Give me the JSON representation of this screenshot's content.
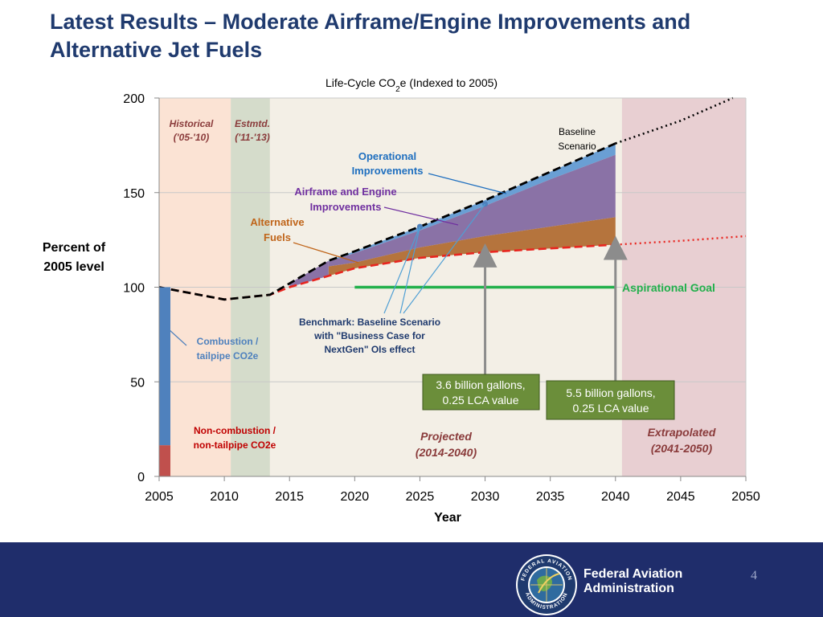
{
  "slide": {
    "title_line1": "Latest Results – Moderate Airframe/Engine Improvements and",
    "title_line2": "Alternative Jet Fuels",
    "page_number": "4",
    "org_line1": "Federal Aviation",
    "org_line2": "Administration",
    "seal_top_text": "FEDERAL AVIATION",
    "seal_bottom_text": "ADMINISTRATION"
  },
  "chart_data": {
    "type": "area",
    "title": "Life-Cycle CO2e (Indexed to 2005)",
    "title_prefix": "Life-Cycle CO",
    "title_sub": "2",
    "title_suffix": "e (Indexed to 2005)",
    "xlabel": "Year",
    "ylabel_line1": "Percent of",
    "ylabel_line2": "2005 level",
    "xlim": [
      2005,
      2050
    ],
    "ylim": [
      0,
      200
    ],
    "xticks": [
      2005,
      2010,
      2015,
      2020,
      2025,
      2030,
      2035,
      2040,
      2045,
      2050
    ],
    "yticks": [
      0,
      50,
      100,
      150,
      200
    ],
    "periods": [
      {
        "from": 2005,
        "to": 2010.5,
        "color": "#fbe3d4",
        "label_line1": "Historical",
        "label_line2": "('05-'10)",
        "label_color": "#8a3b3b"
      },
      {
        "from": 2010.5,
        "to": 2013.5,
        "color": "#d5dccb",
        "label_line1": "Estmtd.",
        "label_line2": "('11-'13)",
        "label_color": "#8a3b3b"
      },
      {
        "from": 2013.5,
        "to": 2040.5,
        "color": "#f3efe6",
        "label_line1": "Projected",
        "label_line2": "(2014-2040)",
        "label_color": "#8a3b3b"
      },
      {
        "from": 2040.5,
        "to": 2050.5,
        "color": "#e8cfd2",
        "label_line1": "Extrapolated",
        "label_line2": "(2041-2050)",
        "label_color": "#8a3b3b"
      }
    ],
    "stacked_2005_bar": [
      {
        "name": "Non-combustion / non-tailpipe CO2e",
        "from": 0,
        "to": 16.5,
        "color": "#c0504d"
      },
      {
        "name": "Combustion / tailpipe CO2e",
        "from": 16.5,
        "to": 100,
        "color": "#4f81bd"
      }
    ],
    "series": [
      {
        "name": "Baseline Scenario",
        "style": "black-dashed",
        "x": [
          2005,
          2010,
          2013.5,
          2015,
          2018,
          2020,
          2025,
          2030,
          2035,
          2040
        ],
        "y": [
          100,
          93.5,
          96,
          102,
          114,
          119,
          132,
          146,
          161,
          176
        ]
      },
      {
        "name": "Baseline extrapolation",
        "style": "black-dotted",
        "x": [
          2040,
          2045,
          2049
        ],
        "y": [
          176,
          188,
          200
        ]
      },
      {
        "name": "Operational Improvements",
        "style": "area-top",
        "color": "#6a9fd4",
        "x": [
          2018,
          2020,
          2025,
          2030,
          2035,
          2040
        ],
        "y": [
          113.5,
          118,
          130,
          143,
          157,
          170
        ]
      },
      {
        "name": "Airframe and Engine Improvements",
        "style": "area-top",
        "color": "#8a72a6",
        "x": [
          2018,
          2020,
          2025,
          2030,
          2035,
          2040
        ],
        "y": [
          111,
          113,
          121,
          127,
          132,
          137
        ]
      },
      {
        "name": "Alternative Fuels",
        "style": "red-dashed",
        "color": "#e8251f",
        "x": [
          2005,
          2010,
          2013.5,
          2015,
          2018,
          2020,
          2025,
          2030,
          2035,
          2040
        ],
        "y": [
          100,
          93.5,
          96,
          100,
          106,
          110,
          115.5,
          118.5,
          120.5,
          122.5
        ]
      },
      {
        "name": "Alternative fuels extrapolation",
        "style": "red-dotted",
        "color": "#e8251f",
        "x": [
          2040,
          2045,
          2050
        ],
        "y": [
          122.5,
          124.5,
          127
        ]
      },
      {
        "name": "Aspirational Goal",
        "style": "green-line",
        "color": "#21b04b",
        "x": [
          2020,
          2040
        ],
        "y": [
          100,
          100
        ]
      }
    ],
    "benchmark_points": [
      {
        "x": 2025,
        "y": 132
      },
      {
        "x": 2030,
        "y": 144
      }
    ],
    "annotations": {
      "historical_line1": "Historical",
      "historical_line2": "('05-'10)",
      "estimated_line1": "Estmtd.",
      "estimated_line2": "('11-'13)",
      "baseline_line1": "Baseline",
      "baseline_line2": "Scenario",
      "operational_line1": "Operational",
      "operational_line2": "Improvements",
      "airframe_line1": "Airframe and Engine",
      "airframe_line2": "Improvements",
      "altfuels_line1": "Alternative",
      "altfuels_line2": "Fuels",
      "aspirational": "Aspirational Goal",
      "benchmark_line1": "Benchmark: Baseline Scenario",
      "benchmark_line2": "with \"Business Case for",
      "benchmark_line3": "NextGen\" OIs effect",
      "combustion_line1": "Combustion  /",
      "combustion_line2": "tailpipe CO2e",
      "noncombustion_line1": "Non-combustion /",
      "noncombustion_line2": "non-tailpipe CO2e",
      "projected_line1": "Projected",
      "projected_line2": "(2014-2040)",
      "extrapolated_line1": "Extrapolated",
      "extrapolated_line2": "(2041-2050)",
      "box2030_line1": "3.6 billion gallons,",
      "box2030_line2": "0.25 LCA value",
      "box2040_line1": "5.5 billion gallons,",
      "box2040_line2": "0.25 LCA value"
    },
    "colors": {
      "title_blue": "#1f3a6e",
      "operational_blue": "#1f6fbf",
      "airframe_purple": "#7030a0",
      "altfuel_brown": "#c0651a",
      "area_brown": "#b5743d",
      "goal_green": "#21b04b",
      "combustion_blue": "#4f81bd",
      "noncombustion_red": "#c00000",
      "period_label": "#8a3b3b",
      "box_green": "#6b8e3a"
    }
  }
}
